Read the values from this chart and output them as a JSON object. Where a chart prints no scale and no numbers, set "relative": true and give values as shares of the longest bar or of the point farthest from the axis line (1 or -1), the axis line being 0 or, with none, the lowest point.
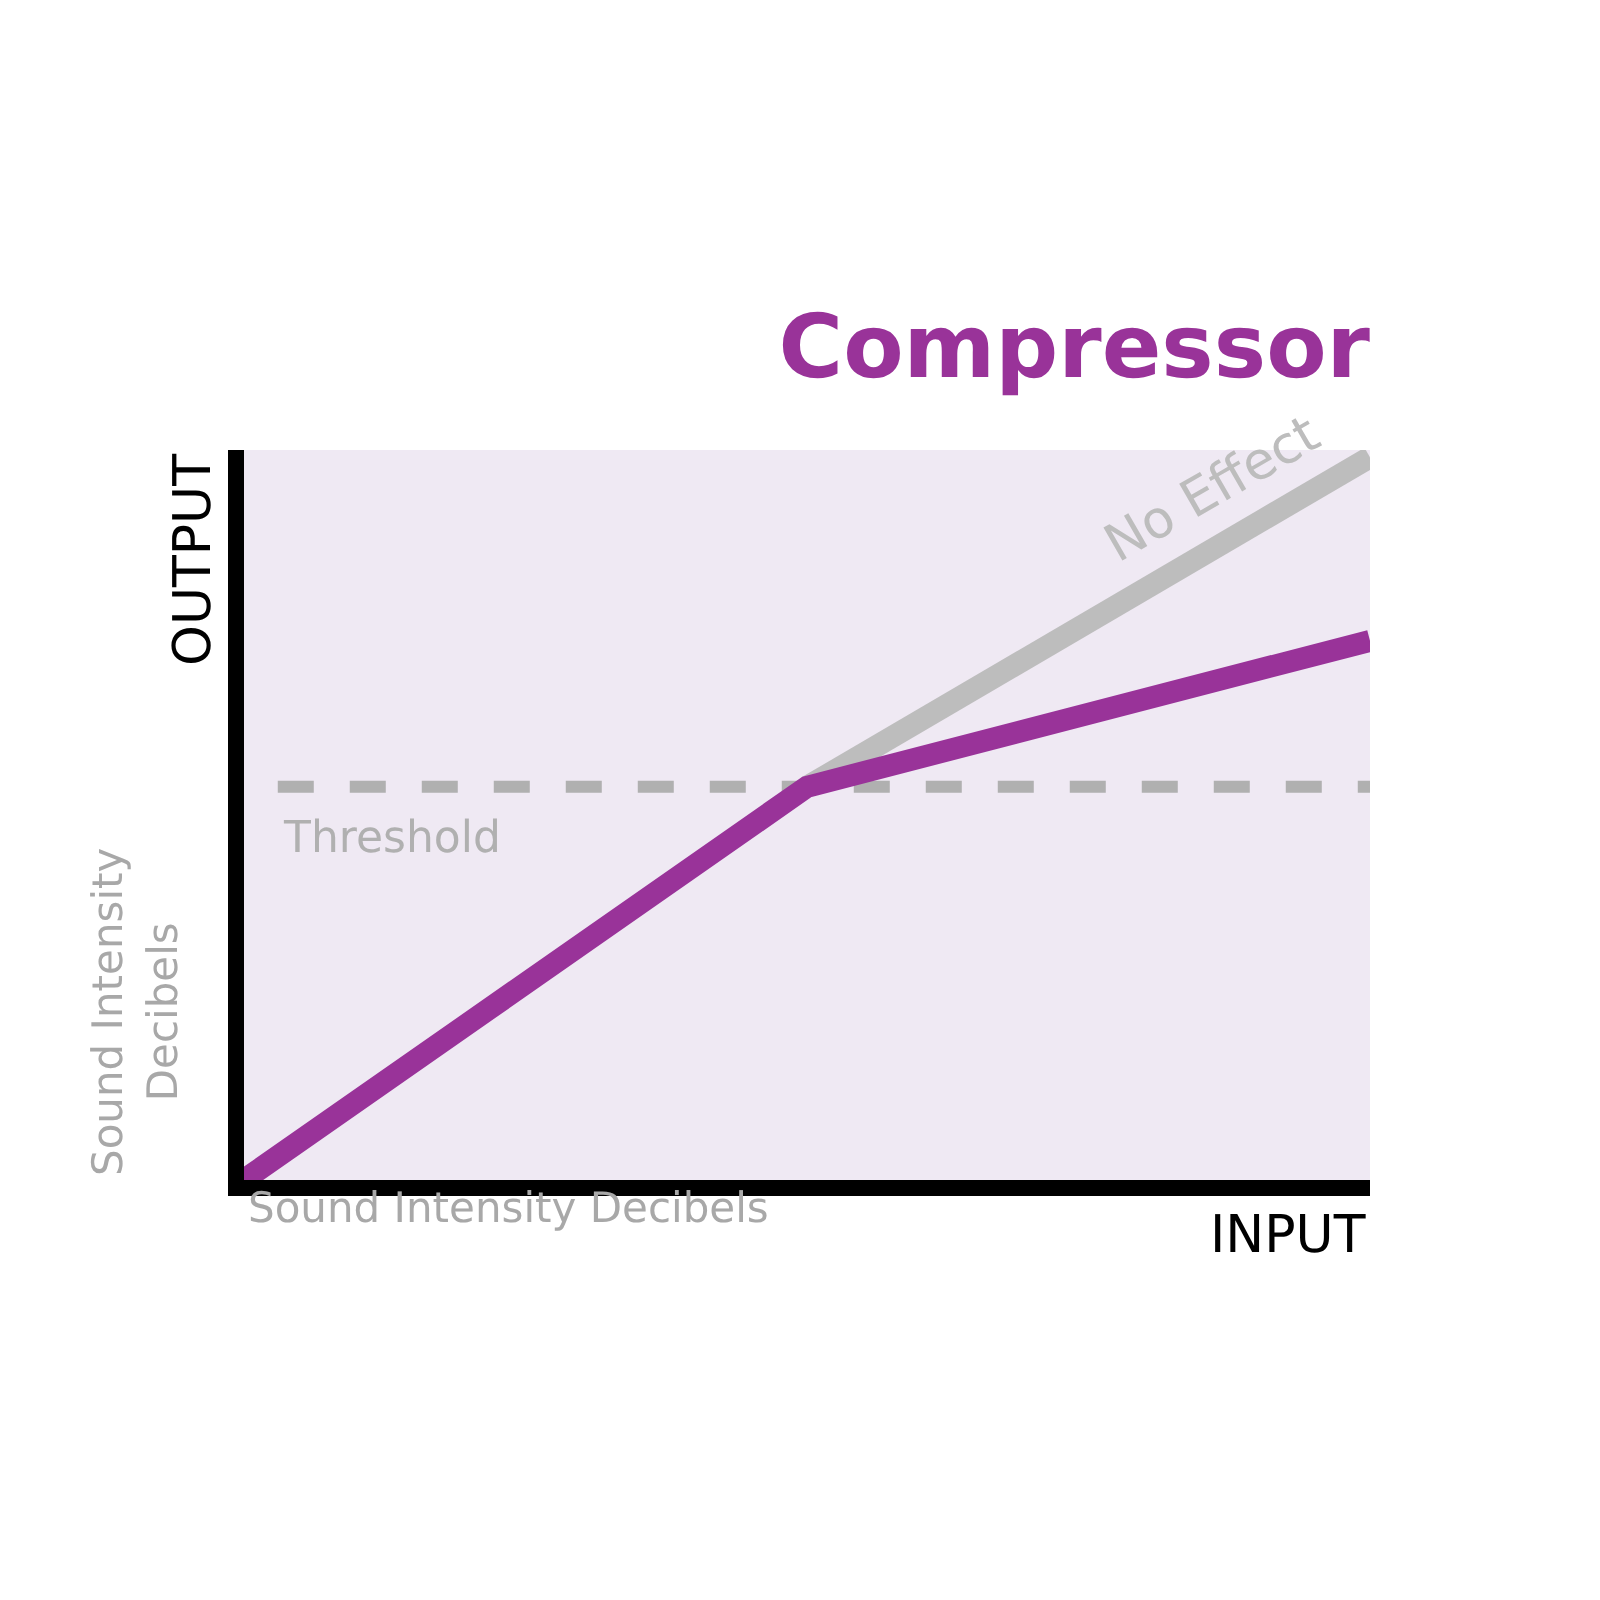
{
  "chart_data": {
    "type": "line",
    "title": "Compressor",
    "xlabel": "INPUT",
    "ylabel": "OUTPUT",
    "relative": true,
    "categories": [
      null,
      null,
      null
    ],
    "legend": false,
    "grid": false,
    "marker": "none",
    "line_style": "solid",
    "series": [
      {
        "color": "#993399",
        "values": [
          0,
          0.544,
          0.746
        ]
      },
      {
        "name": "No Effect",
        "color": "#bdbdbd",
        "values": [
          null,
          0.544,
          1.0
        ]
      }
    ],
    "ref_lines": [
      {
        "axis": "y",
        "value": 0.544,
        "label": "Threshold",
        "color": "#b0b0b0",
        "line_style": "dashed"
      }
    ],
    "annotations": [
      "Sound Intensity Decibels",
      "Sound Intensity Decibels"
    ]
  }
}
